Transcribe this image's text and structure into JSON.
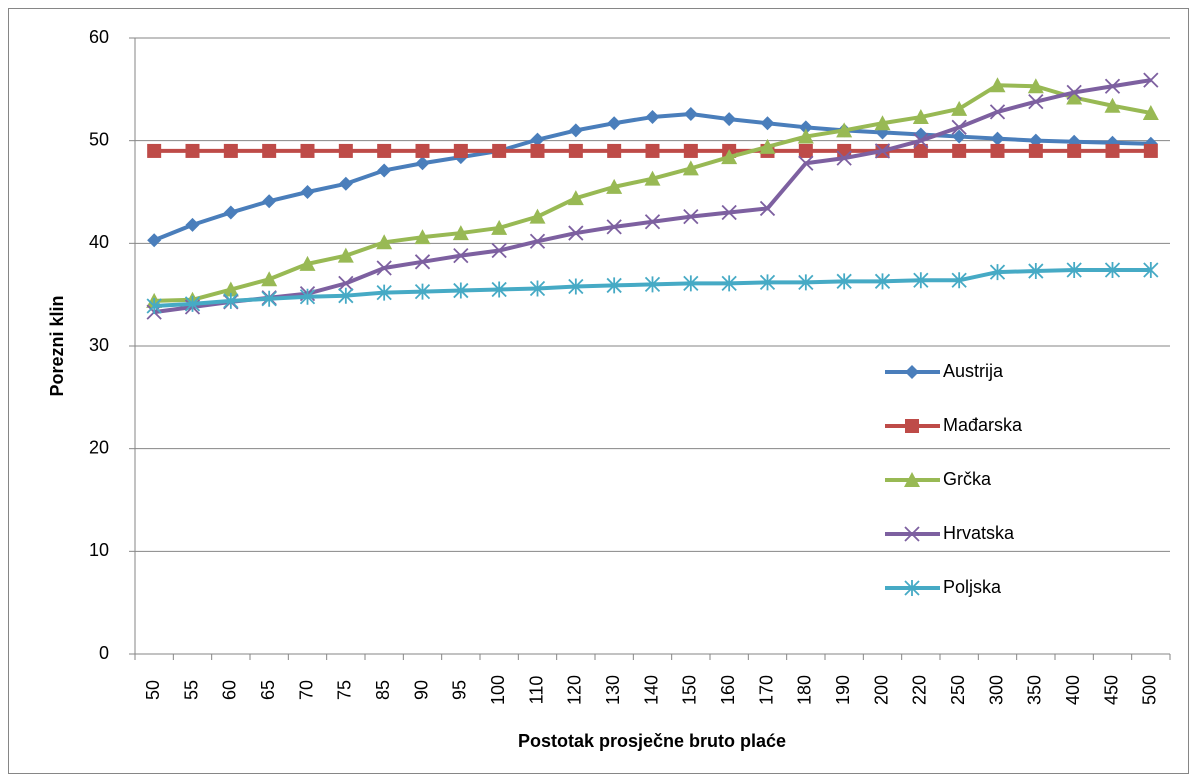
{
  "chart_data": {
    "type": "line",
    "x_label": "Postotak prosječne bruto plaće",
    "y_label": "Porezni klin",
    "categories": [
      "50",
      "55",
      "60",
      "65",
      "70",
      "75",
      "85",
      "90",
      "95",
      "100",
      "110",
      "120",
      "130",
      "140",
      "150",
      "160",
      "170",
      "180",
      "190",
      "200",
      "220",
      "250",
      "300",
      "350",
      "400",
      "450",
      "500"
    ],
    "ylim": [
      0,
      60
    ],
    "yticks": [
      0,
      10,
      20,
      30,
      40,
      50,
      60
    ],
    "grid": true,
    "legend": "right",
    "series": [
      {
        "name": "Austrija",
        "color": "#4a7ebb",
        "marker": "diamond",
        "values": [
          40.3,
          41.8,
          43.0,
          44.1,
          45.0,
          45.8,
          47.1,
          47.8,
          48.4,
          49.0,
          50.1,
          51.0,
          51.7,
          52.3,
          52.6,
          52.1,
          51.7,
          51.3,
          51.0,
          50.8,
          50.6,
          50.4,
          50.2,
          50.0,
          49.9,
          49.8,
          49.7
        ]
      },
      {
        "name": "Mađarska",
        "color": "#be4b48",
        "marker": "square",
        "values": [
          49,
          49,
          49,
          49,
          49,
          49,
          49,
          49,
          49,
          49,
          49,
          49,
          49,
          49,
          49,
          49,
          49,
          49,
          49,
          49,
          49,
          49,
          49,
          49,
          49,
          49,
          49
        ]
      },
      {
        "name": "Grčka",
        "color": "#98b954",
        "marker": "triangle",
        "values": [
          34.4,
          34.5,
          35.5,
          36.5,
          38.0,
          38.8,
          40.1,
          40.6,
          41.0,
          41.5,
          42.6,
          44.4,
          45.5,
          46.3,
          47.3,
          48.4,
          49.4,
          50.4,
          51.0,
          51.7,
          52.3,
          53.1,
          55.4,
          55.3,
          54.2,
          53.4,
          52.7
        ]
      },
      {
        "name": "Hrvatska",
        "color": "#7d60a0",
        "marker": "x",
        "values": [
          33.3,
          33.8,
          34.3,
          34.7,
          35.1,
          36.1,
          37.6,
          38.2,
          38.8,
          39.3,
          40.2,
          41.0,
          41.6,
          42.1,
          42.6,
          43.0,
          43.4,
          47.8,
          48.3,
          49.0,
          50.0,
          51.3,
          52.8,
          53.8,
          54.7,
          55.3,
          55.9
        ]
      },
      {
        "name": "Poljska",
        "color": "#46aac5",
        "marker": "star",
        "values": [
          33.9,
          34.1,
          34.4,
          34.6,
          34.8,
          34.9,
          35.2,
          35.3,
          35.4,
          35.5,
          35.6,
          35.8,
          35.9,
          36.0,
          36.1,
          36.1,
          36.2,
          36.2,
          36.3,
          36.3,
          36.4,
          36.4,
          37.2,
          37.3,
          37.4,
          37.4,
          37.4
        ]
      }
    ]
  }
}
